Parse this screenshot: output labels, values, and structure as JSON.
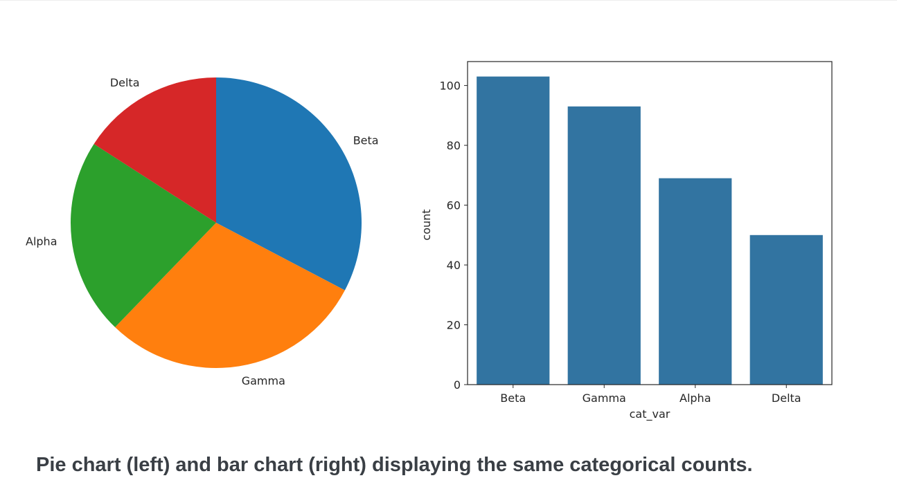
{
  "caption": "Pie chart (left) and bar chart (right) displaying the same categorical counts.",
  "chart_data": [
    {
      "type": "pie",
      "labels": [
        "Beta",
        "Gamma",
        "Alpha",
        "Delta"
      ],
      "values": [
        103,
        93,
        69,
        50
      ],
      "colors": [
        "#1f77b4",
        "#ff7f0e",
        "#2ca02c",
        "#d62728"
      ],
      "start_angle_deg": 90,
      "direction": "clockwise",
      "title": ""
    },
    {
      "type": "bar",
      "categories": [
        "Beta",
        "Gamma",
        "Alpha",
        "Delta"
      ],
      "values": [
        103,
        93,
        69,
        50
      ],
      "color": "#3274a1",
      "xlabel": "cat_var",
      "ylabel": "count",
      "yticks": [
        0,
        20,
        40,
        60,
        80,
        100
      ],
      "ylim": [
        0,
        108
      ],
      "title": "",
      "grid": false
    }
  ]
}
